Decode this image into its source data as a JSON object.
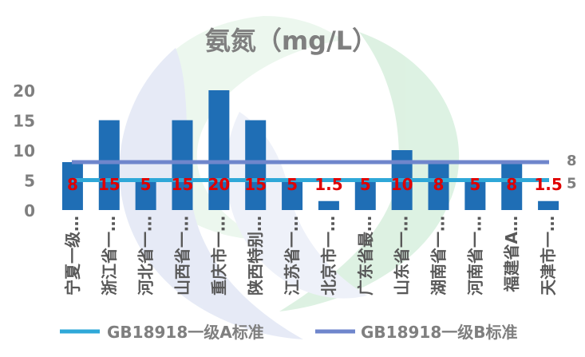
{
  "chart_data": {
    "type": "bar",
    "title": "氨氮（mg/L）",
    "categories": [
      "宁夏一级…",
      "浙江省一…",
      "河北省一…",
      "山西省一…",
      "重庆市一…",
      "陕西特别…",
      "江苏省一…",
      "北京市一…",
      "广东省最…",
      "山东省一…",
      "湖南省一…",
      "河南省一…",
      "福建省A…",
      "天津市一…"
    ],
    "values": [
      8,
      15,
      5,
      15,
      20,
      15,
      5,
      1.5,
      5,
      10,
      8,
      5,
      8,
      1.5
    ],
    "data_labels": [
      "8",
      "15",
      "5",
      "15",
      "20",
      "15",
      "5",
      "1.5",
      "5",
      "10",
      "8",
      "5",
      "8",
      "1.5"
    ],
    "y_ticks": [
      "0",
      "5",
      "10",
      "15",
      "20"
    ],
    "ylim": [
      0,
      20
    ],
    "reference_lines": [
      {
        "name": "GB18918一级A标准",
        "value": 5,
        "label": "5",
        "color": "#2fa8d8"
      },
      {
        "name": "GB18918一级B标准",
        "value": 8,
        "label": "8",
        "color": "#6f86cc"
      }
    ],
    "bar_color": "#1f6eb5",
    "legend_position": "bottom"
  }
}
